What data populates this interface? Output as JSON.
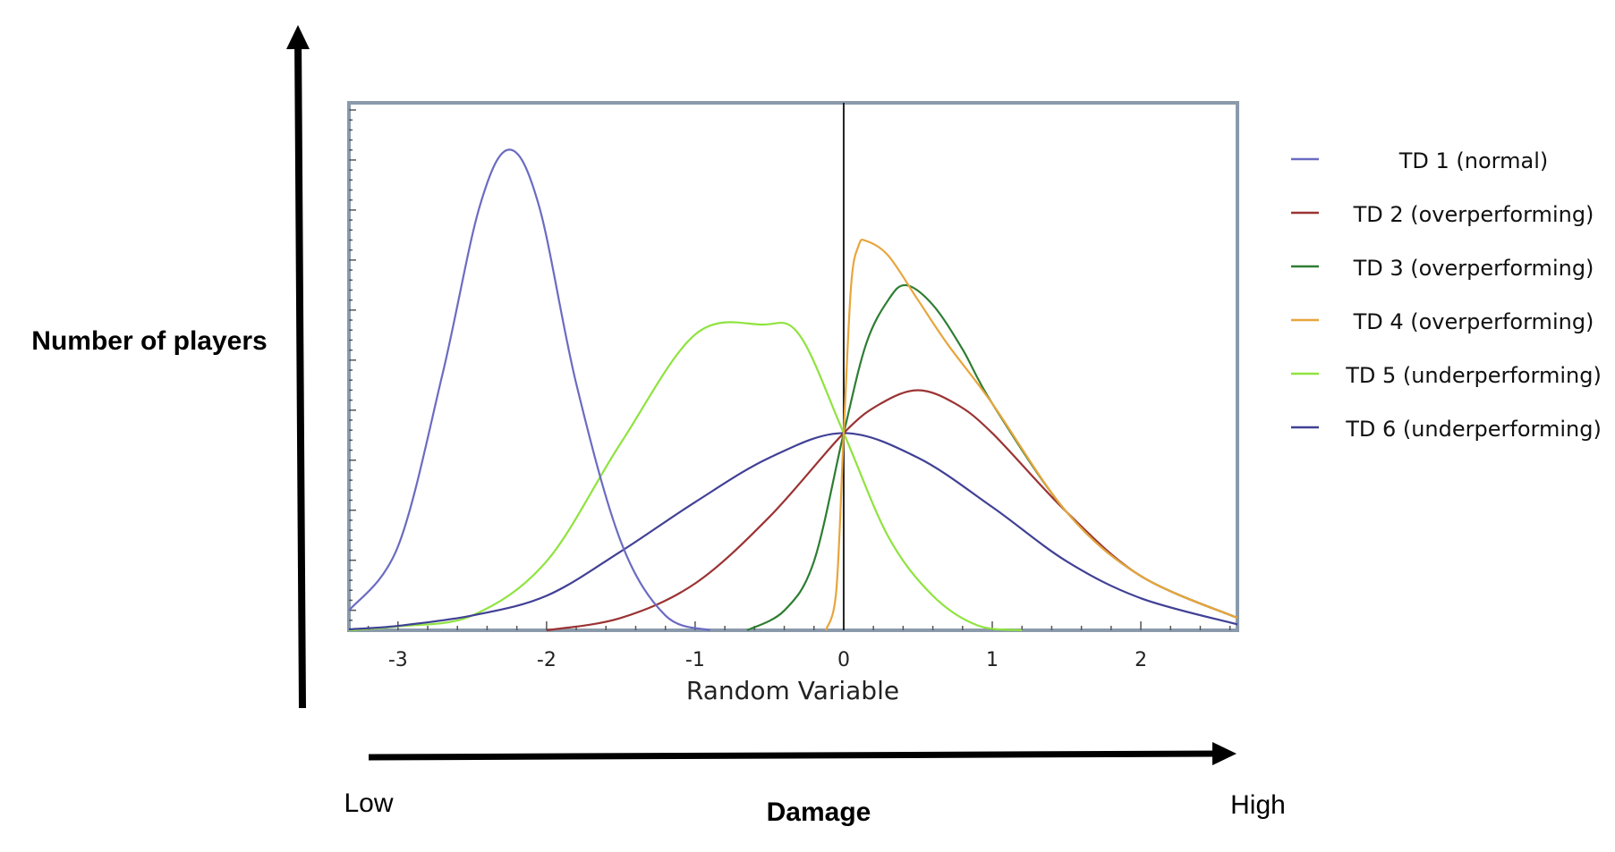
{
  "chart_data": {
    "type": "line",
    "xlabel": "Random Variable",
    "xlim": [
      -3.33,
      2.65
    ],
    "ylim": [
      0,
      1.07
    ],
    "x_ticks": [
      -3,
      -2,
      -1,
      0,
      1,
      2
    ],
    "tick_labels": [
      "-3",
      "-2",
      "-1",
      "0",
      "1",
      "2"
    ],
    "grid": false,
    "legend_position": "right",
    "series": [
      {
        "name": "TD 1 (normal)",
        "color": "#6b6bc2",
        "points": [
          [
            -3.33,
            0.04
          ],
          [
            -3.0,
            0.17
          ],
          [
            -2.7,
            0.52
          ],
          [
            -2.45,
            0.86
          ],
          [
            -2.25,
            0.975
          ],
          [
            -2.05,
            0.86
          ],
          [
            -1.8,
            0.5
          ],
          [
            -1.5,
            0.18
          ],
          [
            -1.2,
            0.03
          ],
          [
            -0.9,
            0.0
          ]
        ]
      },
      {
        "name": "TD 2 (overperforming)",
        "color": "#9b3333",
        "points": [
          [
            -2.0,
            0.0
          ],
          [
            -1.5,
            0.025
          ],
          [
            -1.0,
            0.095
          ],
          [
            -0.5,
            0.23
          ],
          [
            0.0,
            0.4
          ],
          [
            0.25,
            0.46
          ],
          [
            0.5,
            0.487
          ],
          [
            0.75,
            0.46
          ],
          [
            1.0,
            0.4
          ],
          [
            1.5,
            0.24
          ],
          [
            2.0,
            0.11
          ],
          [
            2.65,
            0.025
          ]
        ]
      },
      {
        "name": "TD 3 (overperforming)",
        "color": "#2e7d32",
        "points": [
          [
            -0.65,
            0.0
          ],
          [
            -0.4,
            0.04
          ],
          [
            -0.2,
            0.14
          ],
          [
            0.0,
            0.4
          ],
          [
            0.15,
            0.58
          ],
          [
            0.3,
            0.67
          ],
          [
            0.42,
            0.7
          ],
          [
            0.6,
            0.66
          ],
          [
            0.8,
            0.57
          ],
          [
            1.0,
            0.46
          ],
          [
            1.5,
            0.24
          ],
          [
            2.0,
            0.11
          ],
          [
            2.65,
            0.025
          ]
        ]
      },
      {
        "name": "TD 4 (overperforming)",
        "color": "#e8a53d",
        "points": [
          [
            -0.12,
            0.0
          ],
          [
            -0.05,
            0.08
          ],
          [
            0.0,
            0.4
          ],
          [
            0.05,
            0.7
          ],
          [
            0.1,
            0.78
          ],
          [
            0.15,
            0.79
          ],
          [
            0.3,
            0.76
          ],
          [
            0.5,
            0.67
          ],
          [
            0.7,
            0.58
          ],
          [
            1.0,
            0.46
          ],
          [
            1.5,
            0.24
          ],
          [
            2.0,
            0.11
          ],
          [
            2.65,
            0.025
          ]
        ]
      },
      {
        "name": "TD 5 (underperforming)",
        "color": "#8fe33f",
        "points": [
          [
            -3.33,
            0.0
          ],
          [
            -3.0,
            0.008
          ],
          [
            -2.5,
            0.03
          ],
          [
            -2.0,
            0.14
          ],
          [
            -1.5,
            0.38
          ],
          [
            -1.0,
            0.6
          ],
          [
            -0.55,
            0.62
          ],
          [
            -0.3,
            0.6
          ],
          [
            0.0,
            0.4
          ],
          [
            0.3,
            0.19
          ],
          [
            0.6,
            0.07
          ],
          [
            0.9,
            0.01
          ],
          [
            1.2,
            0.0
          ]
        ]
      },
      {
        "name": "TD 6 (underperforming)",
        "color": "#404096",
        "points": [
          [
            -3.33,
            0.002
          ],
          [
            -3.0,
            0.009
          ],
          [
            -2.5,
            0.03
          ],
          [
            -2.0,
            0.07
          ],
          [
            -1.5,
            0.16
          ],
          [
            -1.0,
            0.26
          ],
          [
            -0.5,
            0.35
          ],
          [
            0.0,
            0.4
          ],
          [
            0.5,
            0.35
          ],
          [
            1.0,
            0.25
          ],
          [
            1.5,
            0.14
          ],
          [
            2.0,
            0.065
          ],
          [
            2.65,
            0.012
          ]
        ]
      }
    ]
  },
  "labels": {
    "y_axis": "Number of players",
    "x_axis": "Damage",
    "low": "Low",
    "high": "High"
  }
}
